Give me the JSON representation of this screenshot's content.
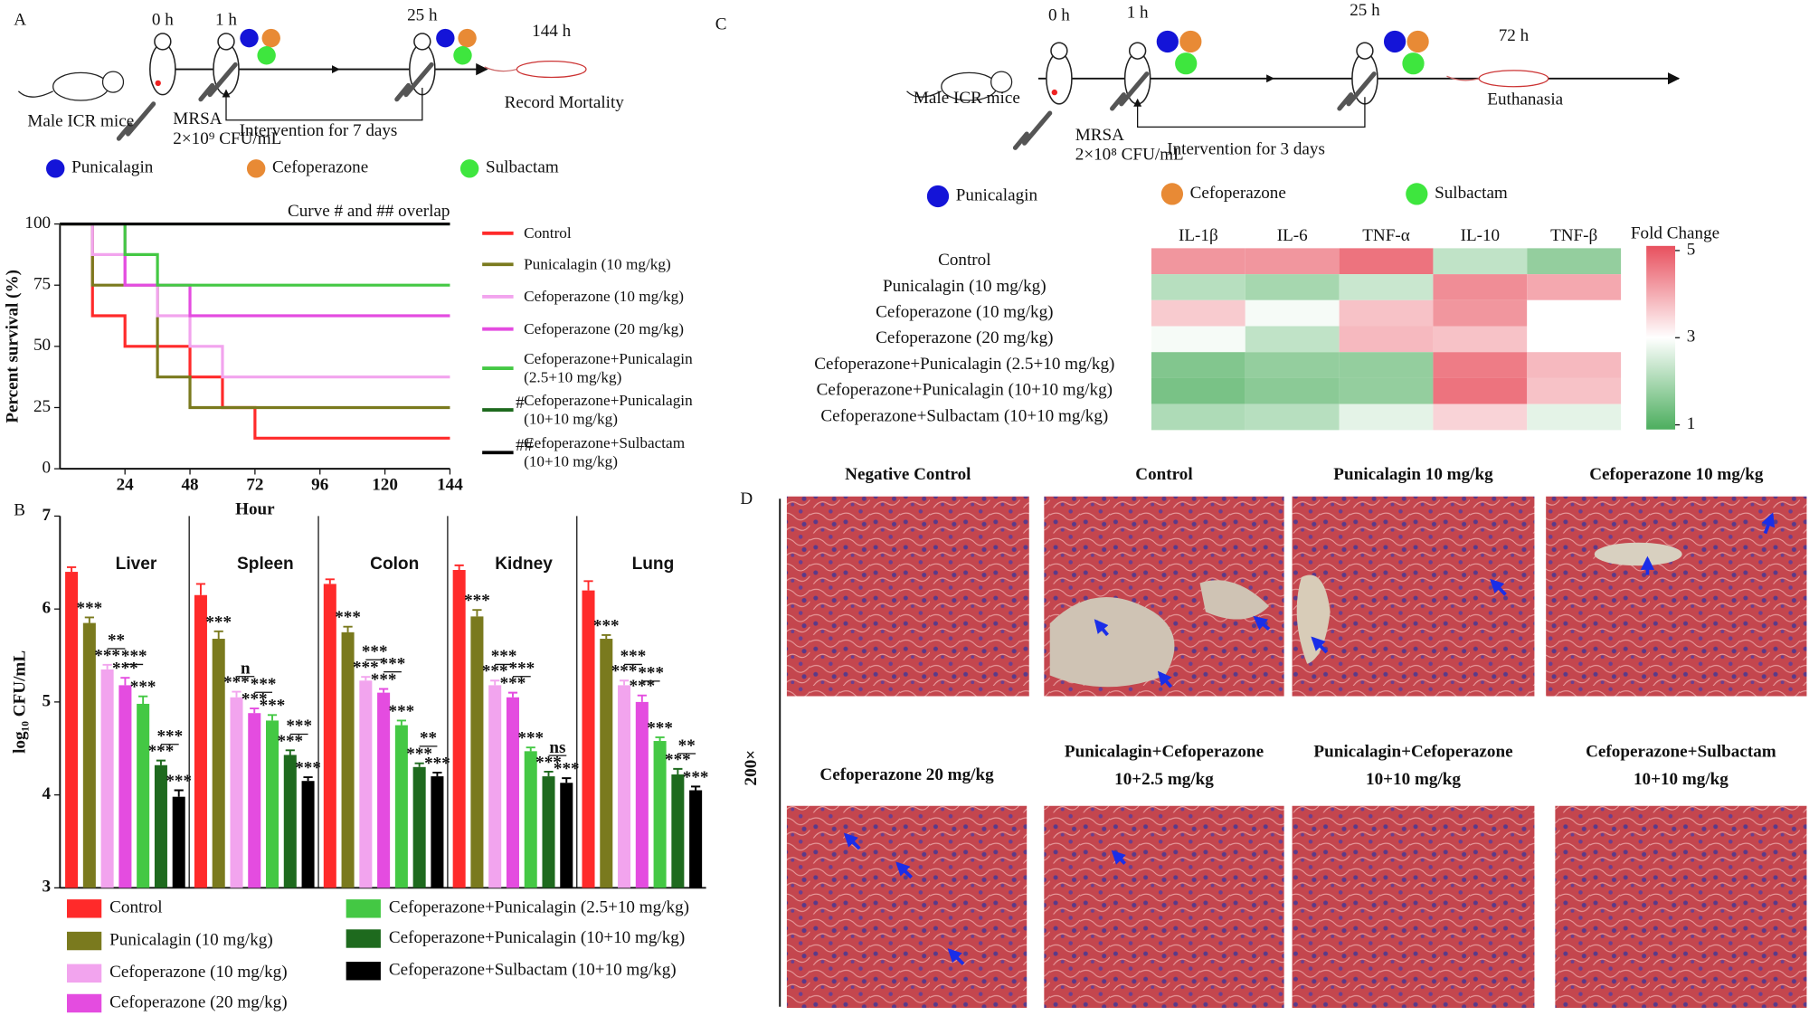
{
  "panel_a": {
    "label": "A",
    "times": [
      "0 h",
      "1 h",
      "25 h",
      "144 h"
    ],
    "subject": "Male ICR mice",
    "inoculum": [
      "MRSA",
      "2×10⁹ CFU/mL"
    ],
    "intervention": "Intervention for 7 days",
    "endpoint": "Record Mortality",
    "drugs": [
      {
        "name": "Punicalagin",
        "color": "#1414d8"
      },
      {
        "name": "Cefoperazone",
        "color": "#e88a35"
      },
      {
        "name": "Sulbactam",
        "color": "#3ee63e"
      }
    ]
  },
  "panel_b": {
    "label": "B"
  },
  "panel_c": {
    "label": "C",
    "times": [
      "0 h",
      "1 h",
      "25 h",
      "72 h"
    ],
    "subject": "Male ICR mice",
    "inoculum": [
      "MRSA",
      "2×10⁸ CFU/mL"
    ],
    "intervention": "Intervention for 3 days",
    "endpoint": "Euthanasia",
    "drugs": [
      {
        "name": "Punicalagin",
        "color": "#1414d8"
      },
      {
        "name": "Cefoperazone",
        "color": "#e88a35"
      },
      {
        "name": "Sulbactam",
        "color": "#3ee63e"
      }
    ]
  },
  "chart_data": [
    {
      "type": "step",
      "xlabel": "Hour",
      "ylabel": "Percent survival (%)",
      "xlim": [
        0,
        144
      ],
      "ylim": [
        0,
        100
      ],
      "xticks": [
        24,
        48,
        72,
        96,
        120,
        144
      ],
      "yticks": [
        0,
        25,
        50,
        75,
        100
      ],
      "annotation": "Curve # and ## overlap",
      "legend": "right",
      "series": [
        {
          "name": "Control",
          "color": "#ff2a2a",
          "x": [
            0,
            12,
            24,
            48,
            60,
            72,
            144
          ],
          "values": [
            100,
            62.5,
            50,
            37.5,
            25,
            12.5,
            12.5
          ]
        },
        {
          "name": "Punicalagin (10 mg/kg)",
          "color": "#7a7a1e",
          "x": [
            0,
            12,
            36,
            48,
            144
          ],
          "values": [
            100,
            75,
            37.5,
            25,
            25
          ]
        },
        {
          "name": "Cefoperazone (10 mg/kg)",
          "color": "#f2a4ee",
          "x": [
            0,
            12,
            24,
            36,
            48,
            60,
            144
          ],
          "values": [
            100,
            87.5,
            75,
            62.5,
            50,
            37.5,
            37.5
          ]
        },
        {
          "name": "Cefoperazone (20 mg/kg)",
          "color": "#e44ce0",
          "x": [
            0,
            24,
            48,
            144
          ],
          "values": [
            100,
            75,
            62.5,
            62.5
          ]
        },
        {
          "name": "Cefoperazone+Punicalagin (2.5+10 mg/kg)",
          "color": "#44c844",
          "x": [
            0,
            24,
            36,
            144
          ],
          "values": [
            100,
            87.5,
            75,
            75
          ]
        },
        {
          "name": "Cefoperazone+Punicalagin (10+10 mg/kg)",
          "color": "#1e6a1e",
          "marker": "#",
          "x": [
            0,
            144
          ],
          "values": [
            100,
            100
          ]
        },
        {
          "name": "Cefoperazone+Sulbactam (10+10 mg/kg)",
          "color": "#000000",
          "marker": "##",
          "x": [
            0,
            144
          ],
          "values": [
            100,
            100
          ]
        }
      ]
    },
    {
      "type": "bar",
      "ylabel": "log₁₀ CFU/mL",
      "ylim": [
        3,
        7
      ],
      "yticks": [
        3,
        4,
        5,
        6,
        7
      ],
      "legend": "bottom",
      "categories": [
        "Liver",
        "Spleen",
        "Colon",
        "Kidney",
        "Lung"
      ],
      "series": [
        {
          "name": "Control",
          "color": "#ff2a2a",
          "values": [
            6.4,
            6.15,
            6.27,
            6.42,
            6.2
          ],
          "errors": [
            0.05,
            0.12,
            0.05,
            0.05,
            0.1
          ]
        },
        {
          "name": "Punicalagin (10 mg/kg)",
          "color": "#7a7a1e",
          "values": [
            5.85,
            5.68,
            5.75,
            5.92,
            5.68
          ],
          "errors": [
            0.06,
            0.08,
            0.06,
            0.07,
            0.04
          ],
          "significance": [
            "***",
            "***",
            "***",
            "***",
            "***"
          ]
        },
        {
          "name": "Cefoperazone (10 mg/kg)",
          "color": "#f2a4ee",
          "values": [
            5.35,
            5.05,
            5.23,
            5.18,
            5.18
          ],
          "errors": [
            0.05,
            0.06,
            0.04,
            0.05,
            0.05
          ],
          "significance": [
            "***",
            "***",
            "***",
            "***",
            "***"
          ]
        },
        {
          "name": "Cefoperazone (20 mg/kg)",
          "color": "#e44ce0",
          "values": [
            5.18,
            4.88,
            5.1,
            5.05,
            5.0
          ],
          "errors": [
            0.08,
            0.05,
            0.04,
            0.05,
            0.07
          ],
          "significance": [
            "***",
            "***",
            "***",
            "***",
            "***"
          ]
        },
        {
          "name": "Cefoperazone+Punicalagin (2.5+10 mg/kg)",
          "color": "#44c844",
          "values": [
            4.98,
            4.8,
            4.75,
            4.47,
            4.58
          ],
          "errors": [
            0.08,
            0.06,
            0.05,
            0.04,
            0.04
          ],
          "significance": [
            "***",
            "***",
            "***",
            "***",
            "***"
          ]
        },
        {
          "name": "Cefoperazone+Punicalagin (10+10 mg/kg)",
          "color": "#1e6a1e",
          "values": [
            4.32,
            4.43,
            4.3,
            4.2,
            4.22
          ],
          "errors": [
            0.05,
            0.05,
            0.04,
            0.05,
            0.06
          ],
          "significance": [
            "***",
            "***",
            "***",
            "***",
            "***"
          ]
        },
        {
          "name": "Cefoperazone+Sulbactam (10+10 mg/kg)",
          "color": "#000000",
          "values": [
            3.98,
            4.15,
            4.2,
            4.13,
            4.05
          ],
          "errors": [
            0.07,
            0.04,
            0.04,
            0.05,
            0.04
          ],
          "significance": [
            "***",
            "***",
            "***",
            "***",
            "***"
          ]
        }
      ],
      "comparisons": [
        [
          "**",
          "***",
          "***"
        ],
        [
          "n",
          "***",
          "***"
        ],
        [
          "***",
          "***",
          "**"
        ],
        [
          "***",
          "***",
          "ns"
        ],
        [
          "***",
          "***",
          "**"
        ]
      ]
    },
    {
      "type": "heatmap",
      "colorbar_title": "Fold Change",
      "zlim": [
        1,
        5
      ],
      "zticks": [
        1,
        3,
        5
      ],
      "colors": [
        "#4cae5e",
        "#ffffff",
        "#e8505e"
      ],
      "columns": [
        "IL-1β",
        "IL-6",
        "TNF-α",
        "IL-10",
        "TNF-β"
      ],
      "rows": [
        "Control",
        "Punicalagin (10 mg/kg)",
        "Cefoperazone (10 mg/kg)",
        "Cefoperazone (20 mg/kg)",
        "Cefoperazone+Punicalagin (2.5+10 mg/kg)",
        "Cefoperazone+Punicalagin (10+10 mg/kg)",
        "Cefoperazone+Sulbactam (10+10 mg/kg)"
      ],
      "values": [
        [
          4.2,
          4.2,
          4.6,
          2.3,
          1.8
        ],
        [
          2.2,
          2.0,
          2.4,
          4.3,
          4.0
        ],
        [
          3.6,
          2.9,
          3.7,
          4.2,
          3.0
        ],
        [
          2.9,
          2.3,
          3.8,
          3.7,
          3.0
        ],
        [
          1.6,
          1.8,
          1.8,
          4.5,
          3.8
        ],
        [
          1.5,
          1.7,
          1.8,
          4.6,
          3.7
        ],
        [
          2.1,
          2.2,
          2.7,
          3.5,
          2.7
        ]
      ]
    }
  ],
  "panel_d": {
    "label": "D",
    "magnification": "200×",
    "images": [
      {
        "title": [
          "Negative Control"
        ]
      },
      {
        "title": [
          "Control"
        ]
      },
      {
        "title": [
          "Punicalagin 10 mg/kg"
        ]
      },
      {
        "title": [
          "Cefoperazone 10 mg/kg"
        ]
      },
      {
        "title": [
          "Cefoperazone 20 mg/kg"
        ]
      },
      {
        "title": [
          "Punicalagin+Cefoperazone",
          "10+2.5 mg/kg"
        ]
      },
      {
        "title": [
          "Punicalagin+Cefoperazone",
          "10+10 mg/kg"
        ]
      },
      {
        "title": [
          "Cefoperazone+Sulbactam",
          "10+10 mg/kg"
        ]
      }
    ]
  }
}
